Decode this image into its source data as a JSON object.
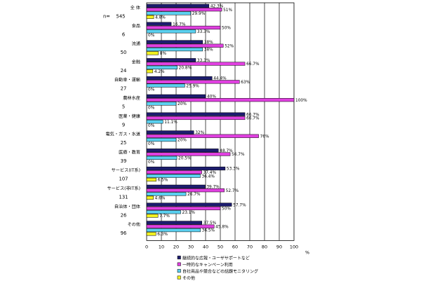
{
  "chart_data": {
    "type": "bar",
    "orientation": "horizontal",
    "n_label": "n=",
    "categories": [
      {
        "label": "全 体",
        "n": "545"
      },
      {
        "label": "食品",
        "n": "6"
      },
      {
        "label": "流通",
        "n": "50"
      },
      {
        "label": "金融",
        "n": "24"
      },
      {
        "label": "自動車・運輸",
        "n": "27"
      },
      {
        "label": "農林水産",
        "n": "5"
      },
      {
        "label": "医薬・健康",
        "n": "9"
      },
      {
        "label": "電気・ガス・水道",
        "n": "25"
      },
      {
        "label": "医療・教育",
        "n": "39"
      },
      {
        "label": "サービス(IT系)",
        "n": "107"
      },
      {
        "label": "サービス(非IT系)",
        "n": "131"
      },
      {
        "label": "自治体・団体",
        "n": "26"
      },
      {
        "label": "その他",
        "n": "96"
      }
    ],
    "series": [
      {
        "name": "継続的な広報・ユーザサポートなど",
        "color": "#1c1c6e",
        "values": [
          42.3,
          16.7,
          38,
          33.3,
          44.4,
          40,
          66.7,
          32,
          48.7,
          53.3,
          39.7,
          57.7,
          37.5
        ],
        "labels": [
          "42.3%",
          "16.7%",
          "38%",
          "33.3%",
          "44.4%",
          "40%",
          "66.7%",
          "32%",
          "48.7%",
          "53.3%",
          "39.7%",
          "57.7%",
          "37.5%"
        ]
      },
      {
        "name": "一時的なキャンペーン利用",
        "color": "#e040e0",
        "values": [
          51,
          50,
          52,
          66.7,
          63,
          100,
          66.7,
          76,
          56.7,
          37.4,
          52.7,
          50,
          45.8
        ],
        "labels": [
          "51%",
          "50%",
          "52%",
          "66.7%",
          "63%",
          "100%",
          "66.7%",
          "76%",
          "56.7%",
          "37.4%",
          "52.7%",
          "50%",
          "45.8%"
        ]
      },
      {
        "name": "自社商品や競合などの話題モニタリング",
        "color": "#5ad0f0",
        "values": [
          29.9,
          33.3,
          38,
          20.8,
          25.9,
          20,
          11.1,
          20,
          20.5,
          36.4,
          26.7,
          23.1,
          36.5
        ],
        "labels": [
          "29.9%",
          "33.3%",
          "38%",
          "20.8%",
          "25.9%",
          "20%",
          "11.1%",
          "20%",
          "20.5%",
          "36.4%",
          "26.7%",
          "23.1%",
          "36.5%"
        ]
      },
      {
        "name": "その他",
        "color": "#f0f020",
        "values": [
          4.8,
          0,
          8,
          4.2,
          0,
          0,
          0,
          0,
          0,
          6.5,
          4.6,
          7.7,
          6.3
        ],
        "labels": [
          "4.8%",
          "0%",
          "8%",
          "4.2%",
          "0%",
          "0%",
          "0%",
          "0%",
          "0%",
          "6.5%",
          "4.6%",
          "7.7%",
          "6.3%"
        ]
      }
    ],
    "x_ticks": [
      "0",
      "10",
      "20",
      "30",
      "40",
      "50",
      "60",
      "70",
      "80",
      "90",
      "100"
    ],
    "xlim": [
      0,
      100
    ],
    "x_unit": "%",
    "grid": "vertical",
    "legend_position": "bottom-right"
  }
}
